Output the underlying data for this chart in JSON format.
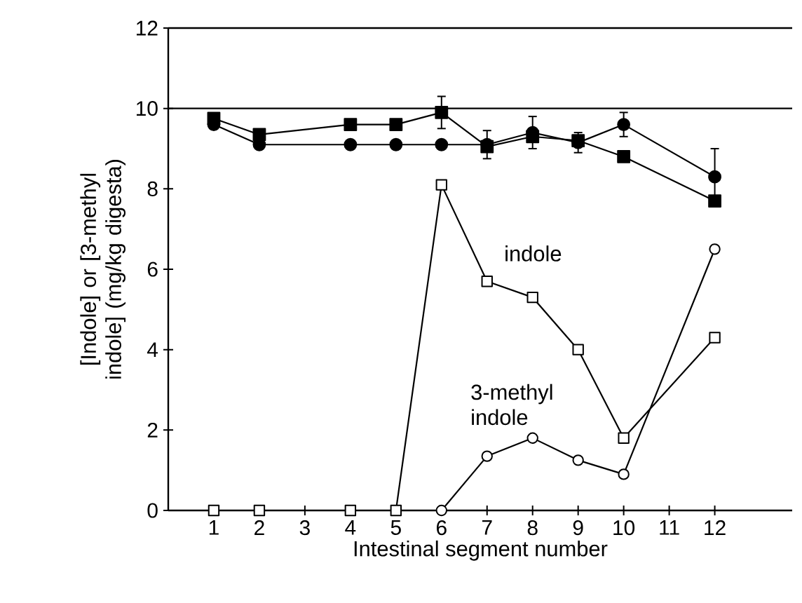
{
  "chart_data": {
    "type": "line",
    "xlabel": "Intestinal segment number",
    "ylabel": "[Indole] or [3-methyl indole] (mg/kg digesta)",
    "x": [
      1,
      2,
      4,
      5,
      6,
      7,
      8,
      9,
      10,
      12
    ],
    "series": [
      {
        "color": "#000000",
        "marker": "square",
        "values": [
          9.75,
          9.35,
          9.6,
          9.6,
          9.9,
          9.05,
          9.3,
          9.2,
          8.8,
          7.7
        ],
        "errors": [
          null,
          null,
          null,
          null,
          0.4,
          null,
          null,
          null,
          null,
          null
        ]
      },
      {
        "color": "#000000",
        "marker": "circle",
        "values": [
          9.6,
          9.1,
          9.1,
          9.1,
          9.1,
          9.1,
          9.4,
          9.15,
          9.6,
          8.3
        ],
        "errors": [
          null,
          null,
          null,
          null,
          null,
          0.35,
          0.4,
          0.25,
          0.3,
          0.7
        ]
      },
      {
        "name": "indole",
        "color": "#000000",
        "marker": "square",
        "values": [
          0,
          0,
          0,
          0,
          8.1,
          5.7,
          5.3,
          4.0,
          1.8,
          4.3
        ]
      },
      {
        "name": "3-methyl indole",
        "color": "#000000",
        "marker": "circle",
        "values": [
          null,
          null,
          null,
          null,
          0,
          1.35,
          1.8,
          1.25,
          0.9,
          6.5
        ]
      }
    ],
    "xlim": [
      0,
      13.7
    ],
    "xticks": [
      1,
      2,
      3,
      4,
      5,
      6,
      7,
      8,
      9,
      10,
      11,
      12
    ],
    "ylim": [
      0,
      12
    ],
    "yticks": [
      0,
      2,
      4,
      6,
      8,
      10,
      12
    ],
    "ref_lines": [
      {
        "axis": "y",
        "value": 10
      }
    ],
    "line_style": "solid"
  }
}
